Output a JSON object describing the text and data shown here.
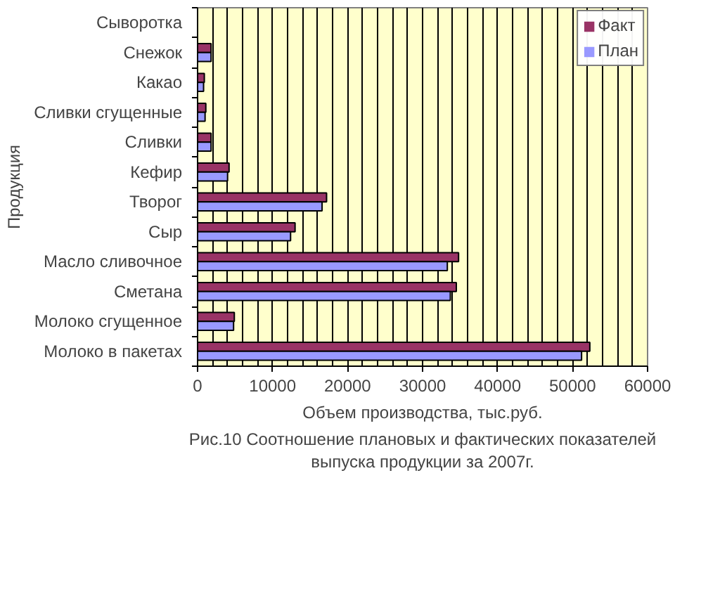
{
  "chart_data": {
    "type": "bar",
    "orientation": "horizontal",
    "xlabel": "Объем производства, тыс.руб.",
    "ylabel": "Продукция",
    "categories": [
      "Сыворотка",
      "Снежок",
      "Какао",
      "Сливки сгущенные",
      "Сливки",
      "Кефир",
      "Творог",
      "Сыр",
      "Масло сливочное",
      "Сметана",
      "Молоко сгущенное",
      "Молоко в пакетах"
    ],
    "series": [
      {
        "name": "Факт",
        "color": "#993366",
        "values": [
          0,
          1800,
          900,
          1100,
          1800,
          4200,
          17200,
          13000,
          34800,
          34500,
          4900,
          52300
        ]
      },
      {
        "name": "План",
        "color": "#9999ff",
        "values": [
          0,
          1800,
          800,
          1000,
          1800,
          4000,
          16600,
          12400,
          33300,
          33700,
          4800,
          51200
        ]
      }
    ],
    "xlim": [
      0,
      60000
    ],
    "xticks": [
      0,
      10000,
      20000,
      30000,
      40000,
      50000,
      60000
    ],
    "grid": "x",
    "legend": "top right",
    "annotations": [
      "Рис.10 Соотношение плановых и фактических показателей\nвыпуска продукции за 2007г."
    ]
  }
}
